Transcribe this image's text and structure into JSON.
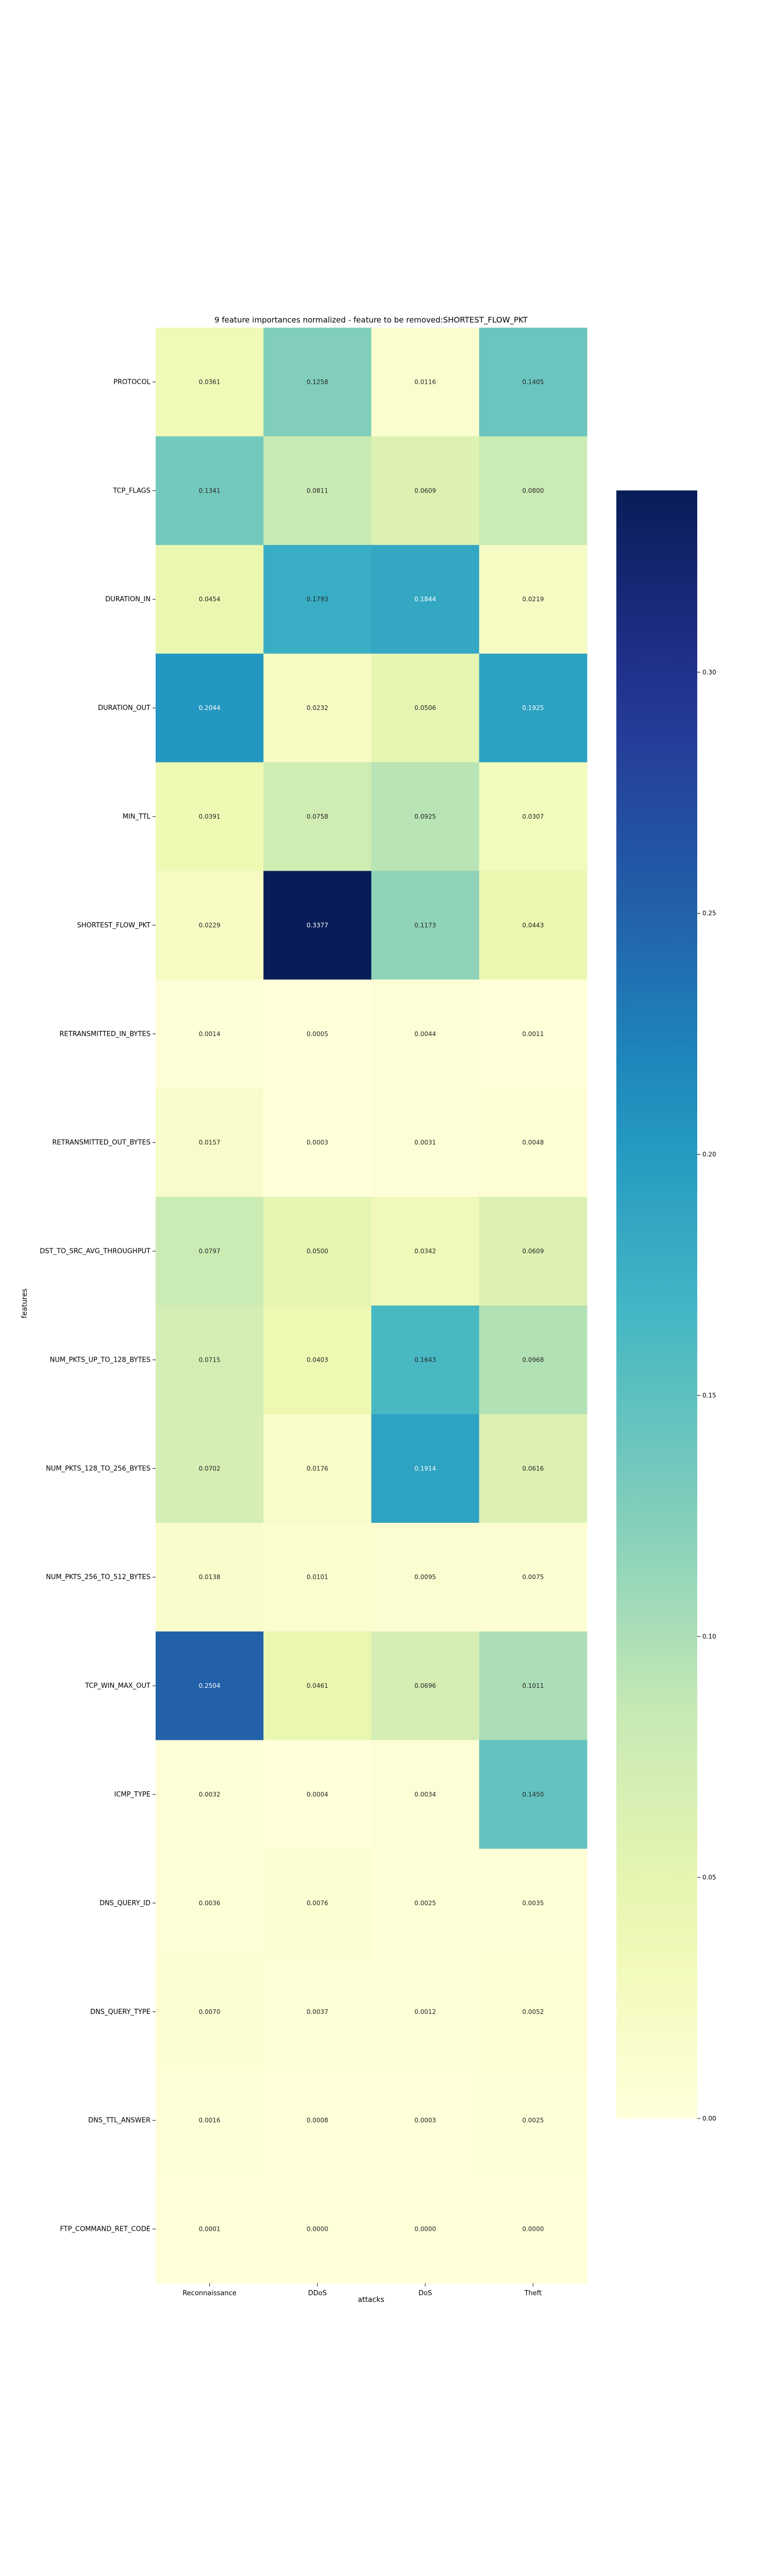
{
  "chart_data": {
    "type": "heatmap",
    "title": "9 feature importances normalized - feature to be removed:SHORTEST_FLOW_PKT",
    "xlabel": "attacks",
    "ylabel": "features",
    "x": [
      "Reconnaissance",
      "DDoS",
      "DoS",
      "Theft"
    ],
    "y": [
      "PROTOCOL",
      "TCP_FLAGS",
      "DURATION_IN",
      "DURATION_OUT",
      "MIN_TTL",
      "SHORTEST_FLOW_PKT",
      "RETRANSMITTED_IN_BYTES",
      "RETRANSMITTED_OUT_BYTES",
      "DST_TO_SRC_AVG_THROUGHPUT",
      "NUM_PKTS_UP_TO_128_BYTES",
      "NUM_PKTS_128_TO_256_BYTES",
      "NUM_PKTS_256_TO_512_BYTES",
      "TCP_WIN_MAX_OUT",
      "ICMP_TYPE",
      "DNS_QUERY_ID",
      "DNS_QUERY_TYPE",
      "DNS_TTL_ANSWER",
      "FTP_COMMAND_RET_CODE"
    ],
    "values": [
      [
        0.0361,
        0.1258,
        0.0116,
        0.1405
      ],
      [
        0.1341,
        0.0811,
        0.0609,
        0.08
      ],
      [
        0.0454,
        0.1793,
        0.1844,
        0.0219
      ],
      [
        0.2044,
        0.0232,
        0.0506,
        0.1925
      ],
      [
        0.0391,
        0.0758,
        0.0925,
        0.0307
      ],
      [
        0.0229,
        0.3377,
        0.1173,
        0.0443
      ],
      [
        0.0014,
        0.0005,
        0.0044,
        0.0011
      ],
      [
        0.0157,
        0.0003,
        0.0031,
        0.0048
      ],
      [
        0.0797,
        0.05,
        0.0342,
        0.0609
      ],
      [
        0.0715,
        0.0403,
        0.1643,
        0.0968
      ],
      [
        0.0702,
        0.0176,
        0.1914,
        0.0616
      ],
      [
        0.0138,
        0.0101,
        0.0095,
        0.0075
      ],
      [
        0.2504,
        0.0461,
        0.0696,
        0.1011
      ],
      [
        0.0032,
        0.0004,
        0.0034,
        0.145
      ],
      [
        0.0036,
        0.0076,
        0.0025,
        0.0035
      ],
      [
        0.007,
        0.0037,
        0.0012,
        0.0052
      ],
      [
        0.0016,
        0.0008,
        0.0003,
        0.0025
      ],
      [
        0.0001,
        0.0,
        0.0,
        0.0
      ]
    ],
    "colormap": "YlGnBu",
    "vmin": 0.0,
    "vmax": 0.3377,
    "colorbar_ticks": [
      "0.00",
      "0.05",
      "0.10",
      "0.15",
      "0.20",
      "0.25",
      "0.30"
    ],
    "grid": false,
    "legend": "colorbar-right"
  }
}
